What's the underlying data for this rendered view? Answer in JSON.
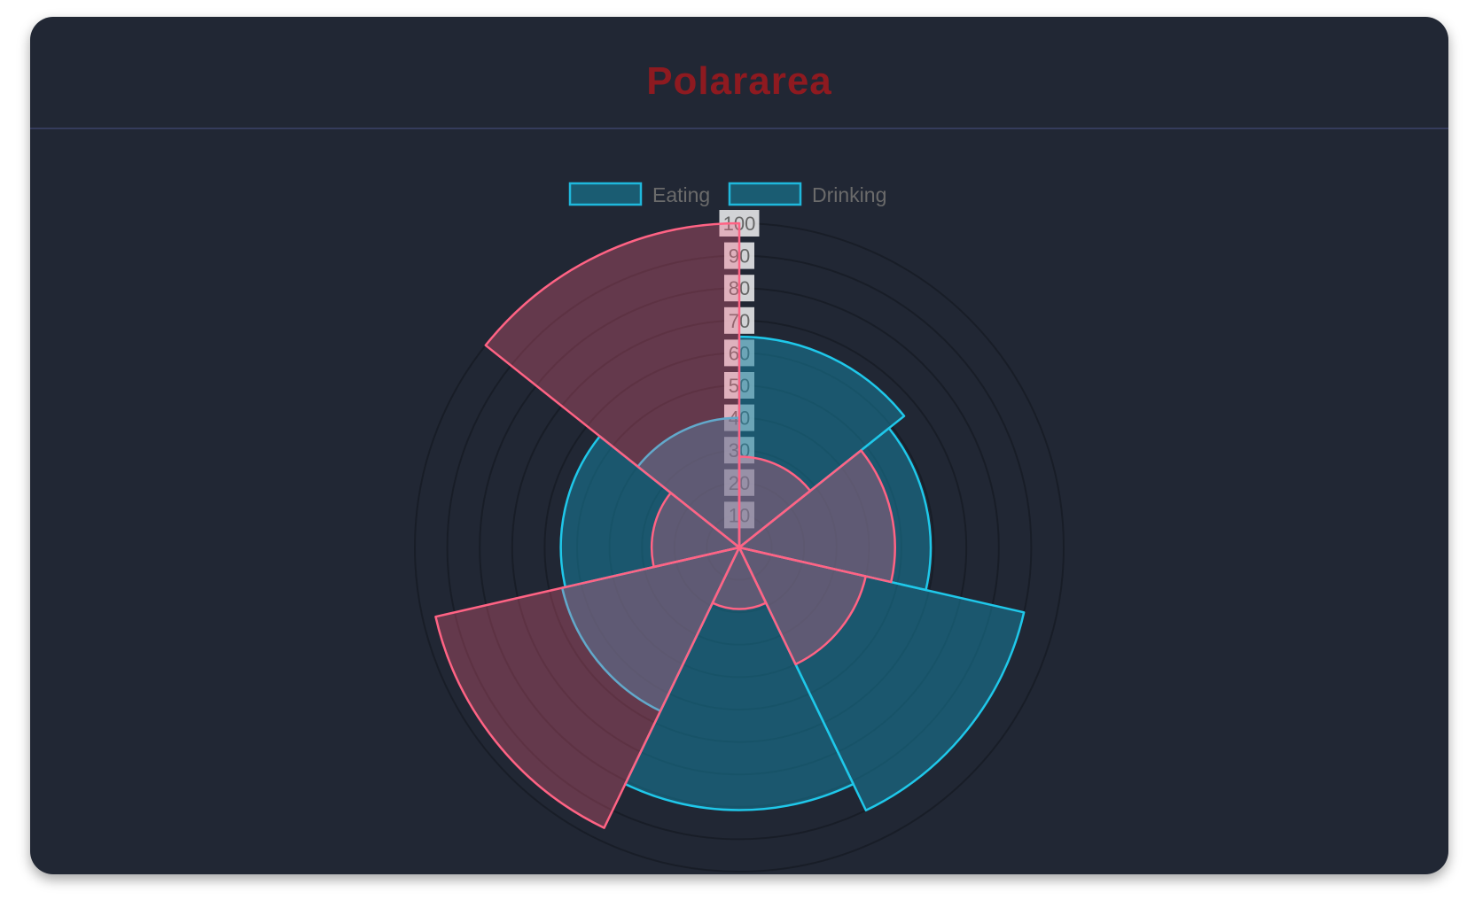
{
  "header": {
    "title": "Polararea"
  },
  "colors": {
    "title": "#8e1a20",
    "card_bg": "#212734",
    "divider": "#353c5c",
    "tick_text": "#666666",
    "grid": "rgba(0,0,0,0.25)"
  },
  "chart_data": {
    "type": "polarArea",
    "title": "",
    "legend": {
      "position": "top",
      "labels": [
        "Eating",
        "Drinking"
      ]
    },
    "scale": {
      "min": 0,
      "max": 100,
      "step": 10,
      "ticks": [
        "10",
        "20",
        "30",
        "40",
        "50",
        "60",
        "70",
        "80",
        "90",
        "100"
      ]
    },
    "grid": true,
    "series": [
      {
        "values": [
          65,
          59,
          90,
          81,
          56,
          55,
          40
        ],
        "fill": "rgba(23,128,158,0.55)",
        "border": "#1fc8ea"
      },
      {
        "values": [
          28,
          48,
          40,
          19,
          96,
          27,
          100
        ],
        "fill": "rgba(255,99,132,0.3)",
        "border": "#ff6384"
      }
    ],
    "legend_colors": {
      "fill": "#1a5c72",
      "border": "#1fb8dc"
    }
  }
}
